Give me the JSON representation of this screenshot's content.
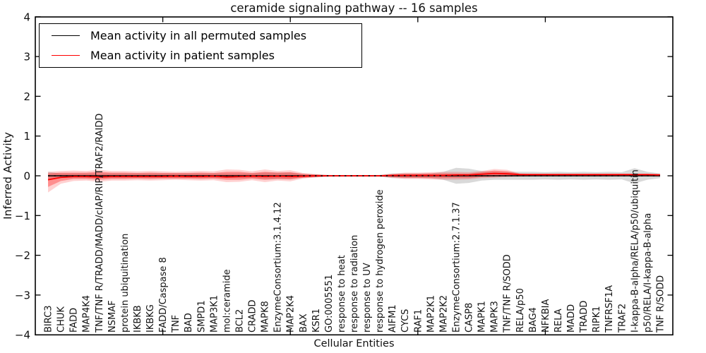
{
  "chart_data": {
    "type": "line",
    "title": "ceramide signaling pathway -- 16 samples",
    "xlabel": "Cellular Entities",
    "ylabel": "Inferred Activity",
    "ylim": [
      -4,
      4
    ],
    "xlim": [
      0,
      50
    ],
    "yticks": [
      -4,
      -3,
      -2,
      -1,
      0,
      1,
      2,
      3,
      4
    ],
    "xticks": [
      10,
      20,
      30,
      40
    ],
    "grid": false,
    "legend_position": "upper left",
    "legend": [
      {
        "label": "Mean activity in all permuted samples",
        "color": "#000000"
      },
      {
        "label": "Mean activity in patient samples",
        "color": "#ff0000"
      }
    ],
    "colors": {
      "patient_line": "#ff0000",
      "permuted_line": "#000000",
      "patient_band_outer": "rgba(255,0,0,0.18)",
      "patient_band_inner": "rgba(255,0,0,0.32)",
      "permuted_band": "rgba(120,120,120,0.28)"
    },
    "categories": [
      "BIRC3",
      "CHUK",
      "FADD",
      "MAP4K4",
      "TNF/TNF R/TRADD/MADD/cIAP/RIP/TRAF2/RAIDD",
      "NSMAF",
      "protein ubiquitination",
      "IKBKB",
      "IKBKG",
      "FADD/Caspase 8",
      "TNF",
      "BAD",
      "SMPD1",
      "MAP3K1",
      "mol:ceramide",
      "BCL2",
      "CRADD",
      "MAPK8",
      "EnzymeConsortium:3.1.4.12",
      "MAP2K4",
      "BAX",
      "KSR1",
      "GO:0005551",
      "response to heat",
      "response to radiation",
      "response to UV",
      "response to hydrogen peroxide",
      "AIFM1",
      "CYCS",
      "RAF1",
      "MAP2K1",
      "MAP2K2",
      "EnzymeConsortium:2.7.1.37",
      "CASP8",
      "MAPK1",
      "MAPK3",
      "TNF/TNF R/SODD",
      "RELA/p50",
      "BAG4",
      "NFKBIA",
      "RELA",
      "MADD",
      "TRADD",
      "RIPK1",
      "TNFRSF1A",
      "TRAF2",
      "I-kappa-B-alpha/RELA/p50/ubiquitin",
      "p50/RELA/I-kappa-B-alpha",
      "TNF R/SODD"
    ],
    "series": [
      {
        "name": "permuted_mean",
        "values": [
          0,
          0,
          0,
          0,
          0,
          0,
          0,
          0,
          0,
          0,
          0,
          0,
          0,
          0,
          0,
          0,
          0,
          0,
          0,
          0,
          0,
          0,
          0,
          0,
          0,
          0,
          0,
          0,
          0,
          0,
          0,
          0,
          0,
          0,
          0,
          0,
          0,
          0,
          0,
          0,
          0,
          0,
          0,
          0,
          0,
          0,
          0,
          0,
          0
        ]
      },
      {
        "name": "patient_mean",
        "values": [
          -0.1,
          -0.04,
          -0.02,
          -0.02,
          -0.03,
          -0.02,
          -0.02,
          -0.02,
          -0.02,
          -0.02,
          -0.01,
          -0.02,
          -0.02,
          -0.01,
          -0.03,
          -0.02,
          -0.01,
          -0.02,
          -0.01,
          -0.02,
          -0.01,
          0,
          0,
          0,
          0,
          0,
          0,
          0.01,
          0.01,
          0.01,
          0.01,
          0.01,
          0.02,
          0.02,
          0.04,
          0.06,
          0.05,
          0.03,
          0.03,
          0.03,
          0.03,
          0.03,
          0.03,
          0.03,
          0.03,
          0.03,
          0.03,
          0.03,
          0.02
        ]
      }
    ],
    "bands": [
      {
        "name": "permuted_range",
        "hi": [
          0.1,
          0.06,
          0.06,
          0.06,
          0.06,
          0.06,
          0.06,
          0.06,
          0.06,
          0.06,
          0.06,
          0.06,
          0.06,
          0.06,
          0.06,
          0.06,
          0.06,
          0.08,
          0.08,
          0.08,
          0.04,
          0.04,
          0.02,
          0.02,
          0.02,
          0.02,
          0.02,
          0.06,
          0.06,
          0.06,
          0.06,
          0.1,
          0.2,
          0.18,
          0.12,
          0.1,
          0.1,
          0.1,
          0.1,
          0.09,
          0.1,
          0.09,
          0.1,
          0.09,
          0.1,
          0.09,
          0.19,
          0.1,
          0.06
        ],
        "lo": [
          -0.1,
          -0.06,
          -0.06,
          -0.06,
          -0.06,
          -0.06,
          -0.06,
          -0.06,
          -0.06,
          -0.06,
          -0.06,
          -0.06,
          -0.06,
          -0.06,
          -0.06,
          -0.06,
          -0.06,
          -0.08,
          -0.08,
          -0.08,
          -0.04,
          -0.04,
          -0.02,
          -0.02,
          -0.02,
          -0.02,
          -0.02,
          -0.06,
          -0.06,
          -0.06,
          -0.06,
          -0.1,
          -0.2,
          -0.18,
          -0.12,
          -0.1,
          -0.1,
          -0.1,
          -0.1,
          -0.09,
          -0.1,
          -0.09,
          -0.1,
          -0.09,
          -0.1,
          -0.09,
          -0.19,
          -0.1,
          -0.06
        ]
      },
      {
        "name": "patient_range_outer",
        "hi": [
          0.1,
          0.12,
          0.13,
          0.12,
          0.15,
          0.12,
          0.12,
          0.11,
          0.12,
          0.11,
          0.1,
          0.11,
          0.12,
          0.11,
          0.16,
          0.15,
          0.11,
          0.16,
          0.12,
          0.14,
          0.07,
          0.04,
          0.02,
          0.015,
          0.015,
          0.015,
          0.02,
          0.05,
          0.08,
          0.08,
          0.09,
          0.1,
          0.1,
          0.09,
          0.12,
          0.17,
          0.15,
          0.06,
          0.05,
          0.05,
          0.05,
          0.05,
          0.05,
          0.05,
          0.05,
          0.05,
          0.05,
          0.05,
          0.05
        ],
        "lo": [
          -0.42,
          -0.2,
          -0.13,
          -0.12,
          -0.15,
          -0.12,
          -0.12,
          -0.11,
          -0.12,
          -0.11,
          -0.1,
          -0.11,
          -0.12,
          -0.11,
          -0.16,
          -0.15,
          -0.11,
          -0.16,
          -0.12,
          -0.14,
          -0.07,
          -0.04,
          -0.02,
          -0.015,
          -0.015,
          -0.015,
          -0.02,
          -0.05,
          -0.08,
          -0.08,
          -0.09,
          -0.1,
          -0.1,
          -0.09,
          -0.06,
          -0.05,
          -0.03,
          -0.02,
          -0.01,
          -0.01,
          -0.01,
          -0.01,
          -0.01,
          -0.01,
          -0.01,
          -0.01,
          -0.01,
          -0.01,
          -0.02
        ]
      },
      {
        "name": "patient_range_inner",
        "hi": [
          0.06,
          0.08,
          0.08,
          0.08,
          0.1,
          0.08,
          0.08,
          0.07,
          0.08,
          0.07,
          0.07,
          0.07,
          0.08,
          0.07,
          0.1,
          0.1,
          0.07,
          0.1,
          0.08,
          0.09,
          0.05,
          0.03,
          0.01,
          0.01,
          0.01,
          0.01,
          0.01,
          0.03,
          0.05,
          0.05,
          0.06,
          0.06,
          0.06,
          0.06,
          0.09,
          0.13,
          0.11,
          0.05,
          0.04,
          0.04,
          0.04,
          0.04,
          0.04,
          0.04,
          0.04,
          0.04,
          0.04,
          0.04,
          0.04
        ],
        "lo": [
          -0.28,
          -0.13,
          -0.08,
          -0.08,
          -0.1,
          -0.08,
          -0.08,
          -0.07,
          -0.08,
          -0.07,
          -0.07,
          -0.07,
          -0.08,
          -0.07,
          -0.1,
          -0.1,
          -0.07,
          -0.1,
          -0.08,
          -0.09,
          -0.05,
          -0.03,
          -0.01,
          -0.01,
          -0.01,
          -0.01,
          -0.01,
          -0.03,
          -0.05,
          -0.05,
          -0.06,
          -0.06,
          -0.06,
          -0.06,
          -0.03,
          -0.02,
          -0.01,
          -0.005,
          -0.005,
          -0.005,
          -0.005,
          -0.005,
          -0.005,
          -0.005,
          -0.005,
          -0.005,
          -0.005,
          -0.005,
          -0.01
        ]
      }
    ]
  }
}
